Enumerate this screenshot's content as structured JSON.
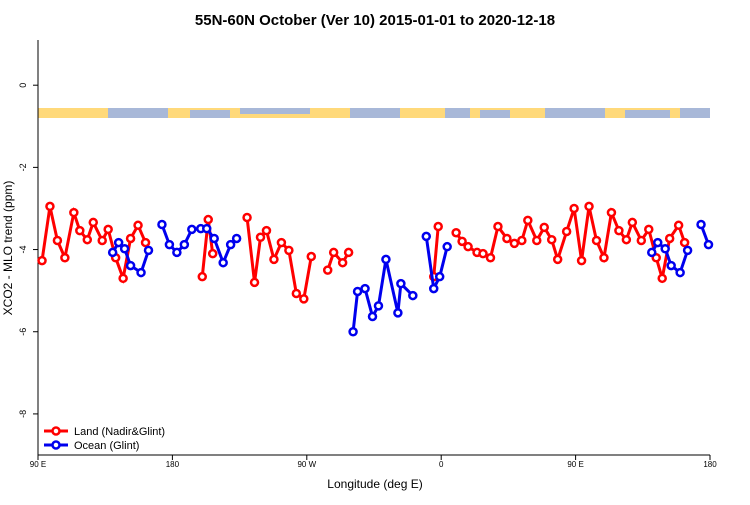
{
  "chart_data": {
    "type": "line",
    "title": "55N-60N October (Ver 10)   2015-01-01 to 2020-12-18",
    "x_label": "Longitude (deg E)",
    "y_label": "XCO2 - MLO trend (ppm)",
    "xlim": [
      90,
      540
    ],
    "xticks": [
      {
        "value": 90,
        "label": "90 E"
      },
      180,
      {
        "value": 270,
        "label": "90 W"
      },
      {
        "value": 360,
        "label": "0"
      },
      {
        "value": 450,
        "label": "90 E"
      },
      {
        "value": 540,
        "label": "180"
      }
    ],
    "ylim": [
      -9,
      1.1
    ],
    "yticks": [
      0,
      -2,
      -4,
      -6,
      -8
    ],
    "legend": "bottom-left",
    "series": [
      {
        "name": "Land (Nadir&Glint)",
        "color": "#ff0000",
        "x": [
          92.7,
          98,
          103,
          108,
          114,
          118,
          123,
          127,
          133,
          137,
          142,
          147,
          152,
          157,
          162,
          null,
          200,
          204,
          207,
          null,
          230,
          235,
          239,
          243,
          248,
          253,
          258,
          263,
          268,
          273,
          null,
          284,
          288,
          294,
          298,
          null,
          355,
          358,
          null,
          370,
          374,
          378,
          384,
          388,
          393,
          398,
          404,
          409,
          414,
          418,
          424,
          429,
          434,
          438,
          444,
          449,
          454,
          459,
          464,
          469,
          474,
          479,
          484,
          488,
          494,
          499,
          504,
          508,
          513,
          519,
          523
        ],
        "values": [
          -4.27,
          -2.95,
          -3.78,
          -4.2,
          -3.1,
          -3.54,
          -3.76,
          -3.34,
          -3.78,
          -3.51,
          -4.2,
          -4.7,
          -3.73,
          -3.41,
          -3.83,
          null,
          -4.66,
          -3.27,
          -4.1,
          null,
          -3.22,
          -4.8,
          -3.7,
          -3.54,
          -4.24,
          -3.83,
          -4.02,
          -5.07,
          -5.2,
          -4.17,
          null,
          -4.5,
          -4.07,
          -4.32,
          -4.07,
          null,
          -4.66,
          -3.44,
          null,
          -3.59,
          -3.8,
          -3.93,
          -4.07,
          -4.1,
          -4.2,
          -3.44,
          -3.73,
          -3.85,
          -3.78,
          -3.29,
          -3.78,
          -3.46,
          -3.76,
          -4.24,
          -3.56,
          -3.0,
          -4.27,
          -2.95,
          -3.78,
          -4.2,
          -3.1,
          -3.54,
          -3.76,
          -3.34,
          -3.78,
          -3.51,
          -4.2,
          -4.7,
          -3.73,
          -3.41,
          -3.83
        ]
      },
      {
        "name": "Ocean (Glint)",
        "color": "#0000ee",
        "x": [
          140,
          144,
          148,
          152,
          159,
          164,
          null,
          173,
          178,
          183,
          188,
          193,
          199,
          203,
          208,
          214,
          219,
          223,
          null,
          301,
          304,
          309,
          314,
          318,
          323,
          331,
          333,
          341,
          null,
          350,
          355,
          359,
          364,
          null,
          501,
          505,
          510,
          514,
          520,
          525,
          null,
          534,
          539
        ],
        "values": [
          -4.07,
          -3.83,
          -3.98,
          -4.39,
          -4.56,
          -4.02,
          null,
          -3.39,
          -3.88,
          -4.07,
          -3.88,
          -3.51,
          -3.49,
          -3.49,
          -3.73,
          -4.32,
          -3.88,
          -3.73,
          null,
          -6.0,
          -5.02,
          -4.95,
          -5.63,
          -5.37,
          -4.24,
          -5.54,
          -4.83,
          -5.12,
          null,
          -3.68,
          -4.95,
          -4.66,
          -3.93,
          null,
          -4.07,
          -3.83,
          -3.98,
          -4.39,
          -4.56,
          -4.02,
          null,
          -3.39,
          -3.88
        ]
      }
    ]
  }
}
